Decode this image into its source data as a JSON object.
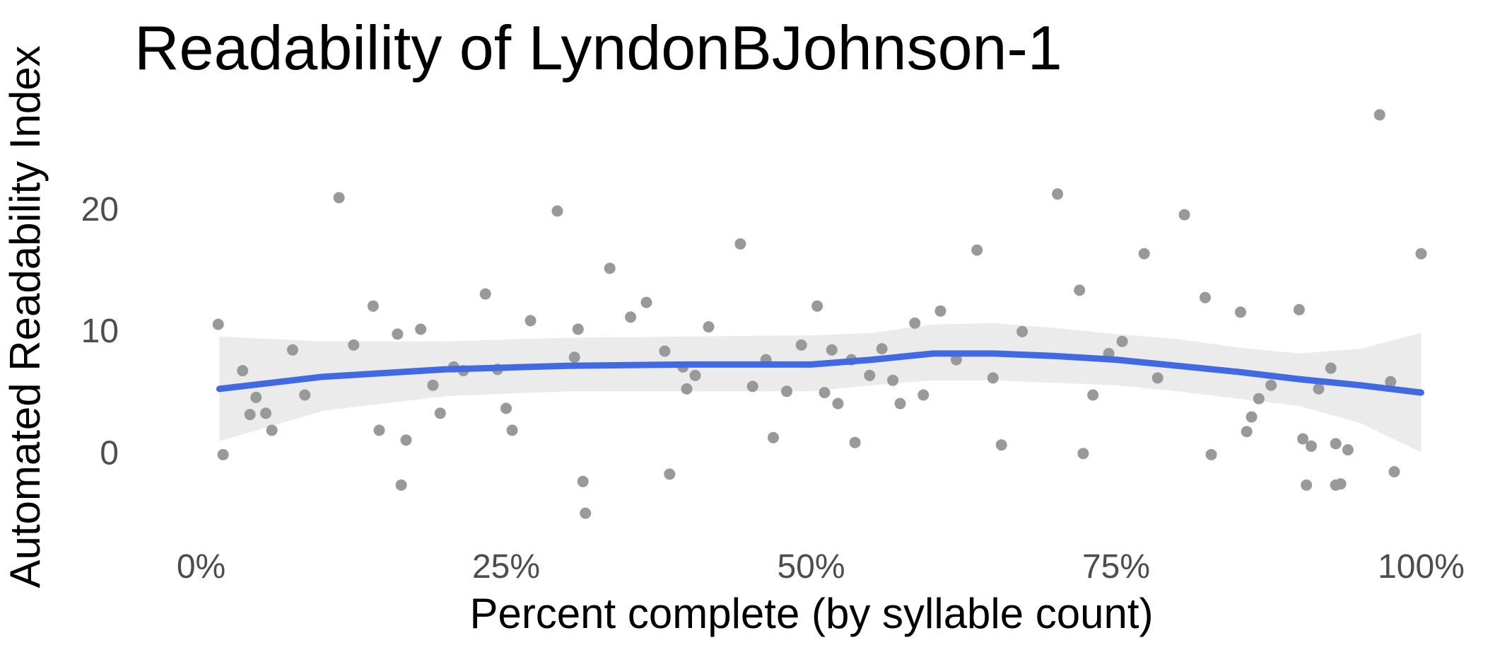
{
  "chart_data": {
    "type": "scatter",
    "title": "Readability of LyndonBJohnson-1",
    "xlabel": "Percent complete (by syllable count)",
    "ylabel": "Automated Readability Index",
    "x_ticks": [
      {
        "value": 0,
        "label": "0%"
      },
      {
        "value": 25,
        "label": "25%"
      },
      {
        "value": 50,
        "label": "50%"
      },
      {
        "value": 75,
        "label": "75%"
      },
      {
        "value": 100,
        "label": "100%"
      }
    ],
    "y_ticks": [
      {
        "value": 0,
        "label": "0"
      },
      {
        "value": 10,
        "label": "10"
      },
      {
        "value": 20,
        "label": "20"
      }
    ],
    "xlim": [
      -2,
      102
    ],
    "ylim": [
      -7,
      29
    ],
    "grid": false,
    "legend": "none",
    "colors": {
      "points": "#999999",
      "smooth_line": "#4169e1",
      "confidence_band": "#ebebeb"
    },
    "points": [
      [
        1.4,
        10.5
      ],
      [
        1.8,
        -0.2
      ],
      [
        3.4,
        6.7
      ],
      [
        4.0,
        3.1
      ],
      [
        4.5,
        4.5
      ],
      [
        5.3,
        3.2
      ],
      [
        5.8,
        1.8
      ],
      [
        7.5,
        8.4
      ],
      [
        8.5,
        4.7
      ],
      [
        11.3,
        20.9
      ],
      [
        12.5,
        8.8
      ],
      [
        14.1,
        12.0
      ],
      [
        14.6,
        1.8
      ],
      [
        16.1,
        9.7
      ],
      [
        16.4,
        -2.7
      ],
      [
        16.8,
        1.0
      ],
      [
        18.0,
        10.1
      ],
      [
        19.0,
        5.5
      ],
      [
        19.6,
        3.2
      ],
      [
        20.7,
        7.0
      ],
      [
        21.5,
        6.7
      ],
      [
        23.3,
        13.0
      ],
      [
        24.3,
        6.8
      ],
      [
        25.0,
        3.6
      ],
      [
        25.5,
        1.8
      ],
      [
        27.0,
        10.8
      ],
      [
        29.2,
        19.8
      ],
      [
        30.6,
        7.8
      ],
      [
        30.9,
        10.1
      ],
      [
        31.3,
        -2.4
      ],
      [
        31.5,
        -5.0
      ],
      [
        33.5,
        15.1
      ],
      [
        35.2,
        11.1
      ],
      [
        36.5,
        12.3
      ],
      [
        38.0,
        8.3
      ],
      [
        38.4,
        -1.8
      ],
      [
        39.5,
        7.0
      ],
      [
        39.8,
        5.2
      ],
      [
        40.5,
        6.3
      ],
      [
        41.6,
        10.3
      ],
      [
        44.2,
        17.1
      ],
      [
        45.2,
        5.4
      ],
      [
        46.3,
        7.6
      ],
      [
        46.9,
        1.2
      ],
      [
        48.0,
        5.0
      ],
      [
        49.2,
        8.8
      ],
      [
        50.5,
        12.0
      ],
      [
        51.1,
        4.9
      ],
      [
        51.7,
        8.4
      ],
      [
        52.2,
        4.0
      ],
      [
        53.3,
        7.6
      ],
      [
        53.6,
        0.8
      ],
      [
        54.8,
        6.3
      ],
      [
        55.8,
        8.5
      ],
      [
        56.7,
        5.9
      ],
      [
        57.3,
        4.0
      ],
      [
        58.5,
        10.6
      ],
      [
        59.2,
        4.7
      ],
      [
        60.6,
        11.6
      ],
      [
        61.9,
        7.6
      ],
      [
        63.6,
        16.6
      ],
      [
        64.9,
        6.1
      ],
      [
        65.6,
        0.6
      ],
      [
        67.3,
        9.9
      ],
      [
        70.2,
        21.2
      ],
      [
        72.0,
        13.3
      ],
      [
        72.3,
        -0.1
      ],
      [
        73.1,
        4.7
      ],
      [
        74.4,
        8.1
      ],
      [
        75.5,
        9.1
      ],
      [
        77.3,
        16.3
      ],
      [
        78.4,
        6.1
      ],
      [
        80.6,
        19.5
      ],
      [
        82.3,
        12.7
      ],
      [
        82.8,
        -0.2
      ],
      [
        85.2,
        11.5
      ],
      [
        85.7,
        1.7
      ],
      [
        86.1,
        2.9
      ],
      [
        86.7,
        4.4
      ],
      [
        87.7,
        5.5
      ],
      [
        90.0,
        11.7
      ],
      [
        90.3,
        1.1
      ],
      [
        90.6,
        -2.7
      ],
      [
        91.0,
        0.5
      ],
      [
        91.6,
        5.2
      ],
      [
        92.6,
        6.9
      ],
      [
        93.0,
        0.7
      ],
      [
        93.0,
        -2.7
      ],
      [
        93.4,
        -2.6
      ],
      [
        94.0,
        0.2
      ],
      [
        96.6,
        27.7
      ],
      [
        97.5,
        5.8
      ],
      [
        97.8,
        -1.6
      ],
      [
        100.0,
        16.3
      ]
    ],
    "smooth_line": [
      [
        1.5,
        5.2
      ],
      [
        10,
        6.2
      ],
      [
        20,
        6.8
      ],
      [
        30,
        7.1
      ],
      [
        40,
        7.2
      ],
      [
        50,
        7.2
      ],
      [
        55,
        7.6
      ],
      [
        60,
        8.1
      ],
      [
        65,
        8.1
      ],
      [
        70,
        7.9
      ],
      [
        75,
        7.6
      ],
      [
        80,
        7.1
      ],
      [
        85,
        6.6
      ],
      [
        90,
        6.0
      ],
      [
        95,
        5.5
      ],
      [
        100,
        4.9
      ]
    ],
    "confidence_band": {
      "upper": [
        [
          1.5,
          9.5
        ],
        [
          10,
          9.1
        ],
        [
          20,
          9.1
        ],
        [
          30,
          9.4
        ],
        [
          40,
          9.5
        ],
        [
          50,
          9.6
        ],
        [
          55,
          9.8
        ],
        [
          60,
          10.5
        ],
        [
          65,
          10.6
        ],
        [
          70,
          10.2
        ],
        [
          75,
          9.7
        ],
        [
          80,
          9.3
        ],
        [
          85,
          8.6
        ],
        [
          90,
          8.1
        ],
        [
          95,
          8.5
        ],
        [
          100,
          9.8
        ]
      ],
      "lower": [
        [
          1.5,
          0.9
        ],
        [
          10,
          3.4
        ],
        [
          20,
          4.6
        ],
        [
          30,
          5.0
        ],
        [
          40,
          5.0
        ],
        [
          50,
          5.0
        ],
        [
          55,
          5.5
        ],
        [
          60,
          5.9
        ],
        [
          65,
          5.9
        ],
        [
          70,
          5.7
        ],
        [
          75,
          5.5
        ],
        [
          80,
          5.0
        ],
        [
          85,
          4.4
        ],
        [
          90,
          3.8
        ],
        [
          95,
          2.4
        ],
        [
          100,
          0.0
        ]
      ]
    }
  }
}
